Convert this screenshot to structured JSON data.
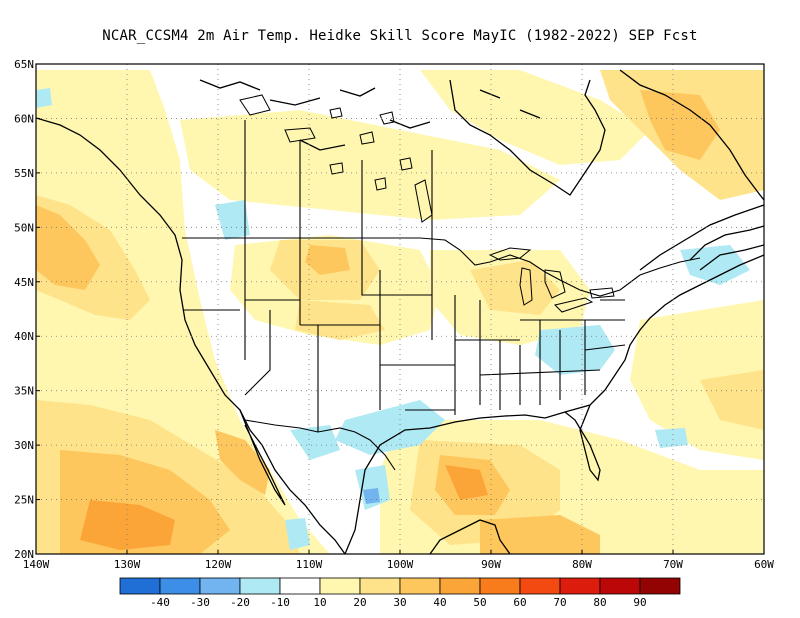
{
  "title": "NCAR_CCSM4  2m Air Temp. Heidke Skill Score MayIC (1982-2022) SEP Fcst",
  "map": {
    "lat_labels": [
      "20N",
      "25N",
      "30N",
      "35N",
      "40N",
      "45N",
      "50N",
      "55N",
      "60N",
      "65N"
    ],
    "lat_values": [
      20,
      25,
      30,
      35,
      40,
      45,
      50,
      55,
      60,
      65
    ],
    "lon_labels": [
      "140W",
      "130W",
      "120W",
      "110W",
      "100W",
      "90W",
      "80W",
      "70W",
      "60W"
    ],
    "lon_values": [
      -140,
      -130,
      -120,
      -110,
      -100,
      -90,
      -80,
      -70,
      -60
    ],
    "lat_range": [
      20,
      65
    ],
    "lon_range": [
      -140,
      -60
    ],
    "gridlines": "dotted"
  },
  "colorbar": {
    "labels": [
      "-40",
      "-30",
      "-20",
      "-10",
      "10",
      "20",
      "30",
      "40",
      "50",
      "60",
      "70",
      "80",
      "90"
    ],
    "colors": [
      "#1f6fd6",
      "#3d8ee6",
      "#72b4f0",
      "#aee9f4",
      "#ffffff",
      "#fff7b0",
      "#fee38a",
      "#fdc75e",
      "#fba538",
      "#f87b1c",
      "#f24a10",
      "#dc1c0c",
      "#bb0707",
      "#930303"
    ]
  },
  "palette": {
    "blue_light": "#aee9f4",
    "blue_mid": "#72b4f0",
    "blue_dark": "#3d8ee6",
    "yellow": "#fff7b0",
    "yellow_mid": "#fee38a",
    "orange_light": "#fdc75e",
    "orange": "#fba538",
    "orange_dark": "#f87b1c"
  }
}
